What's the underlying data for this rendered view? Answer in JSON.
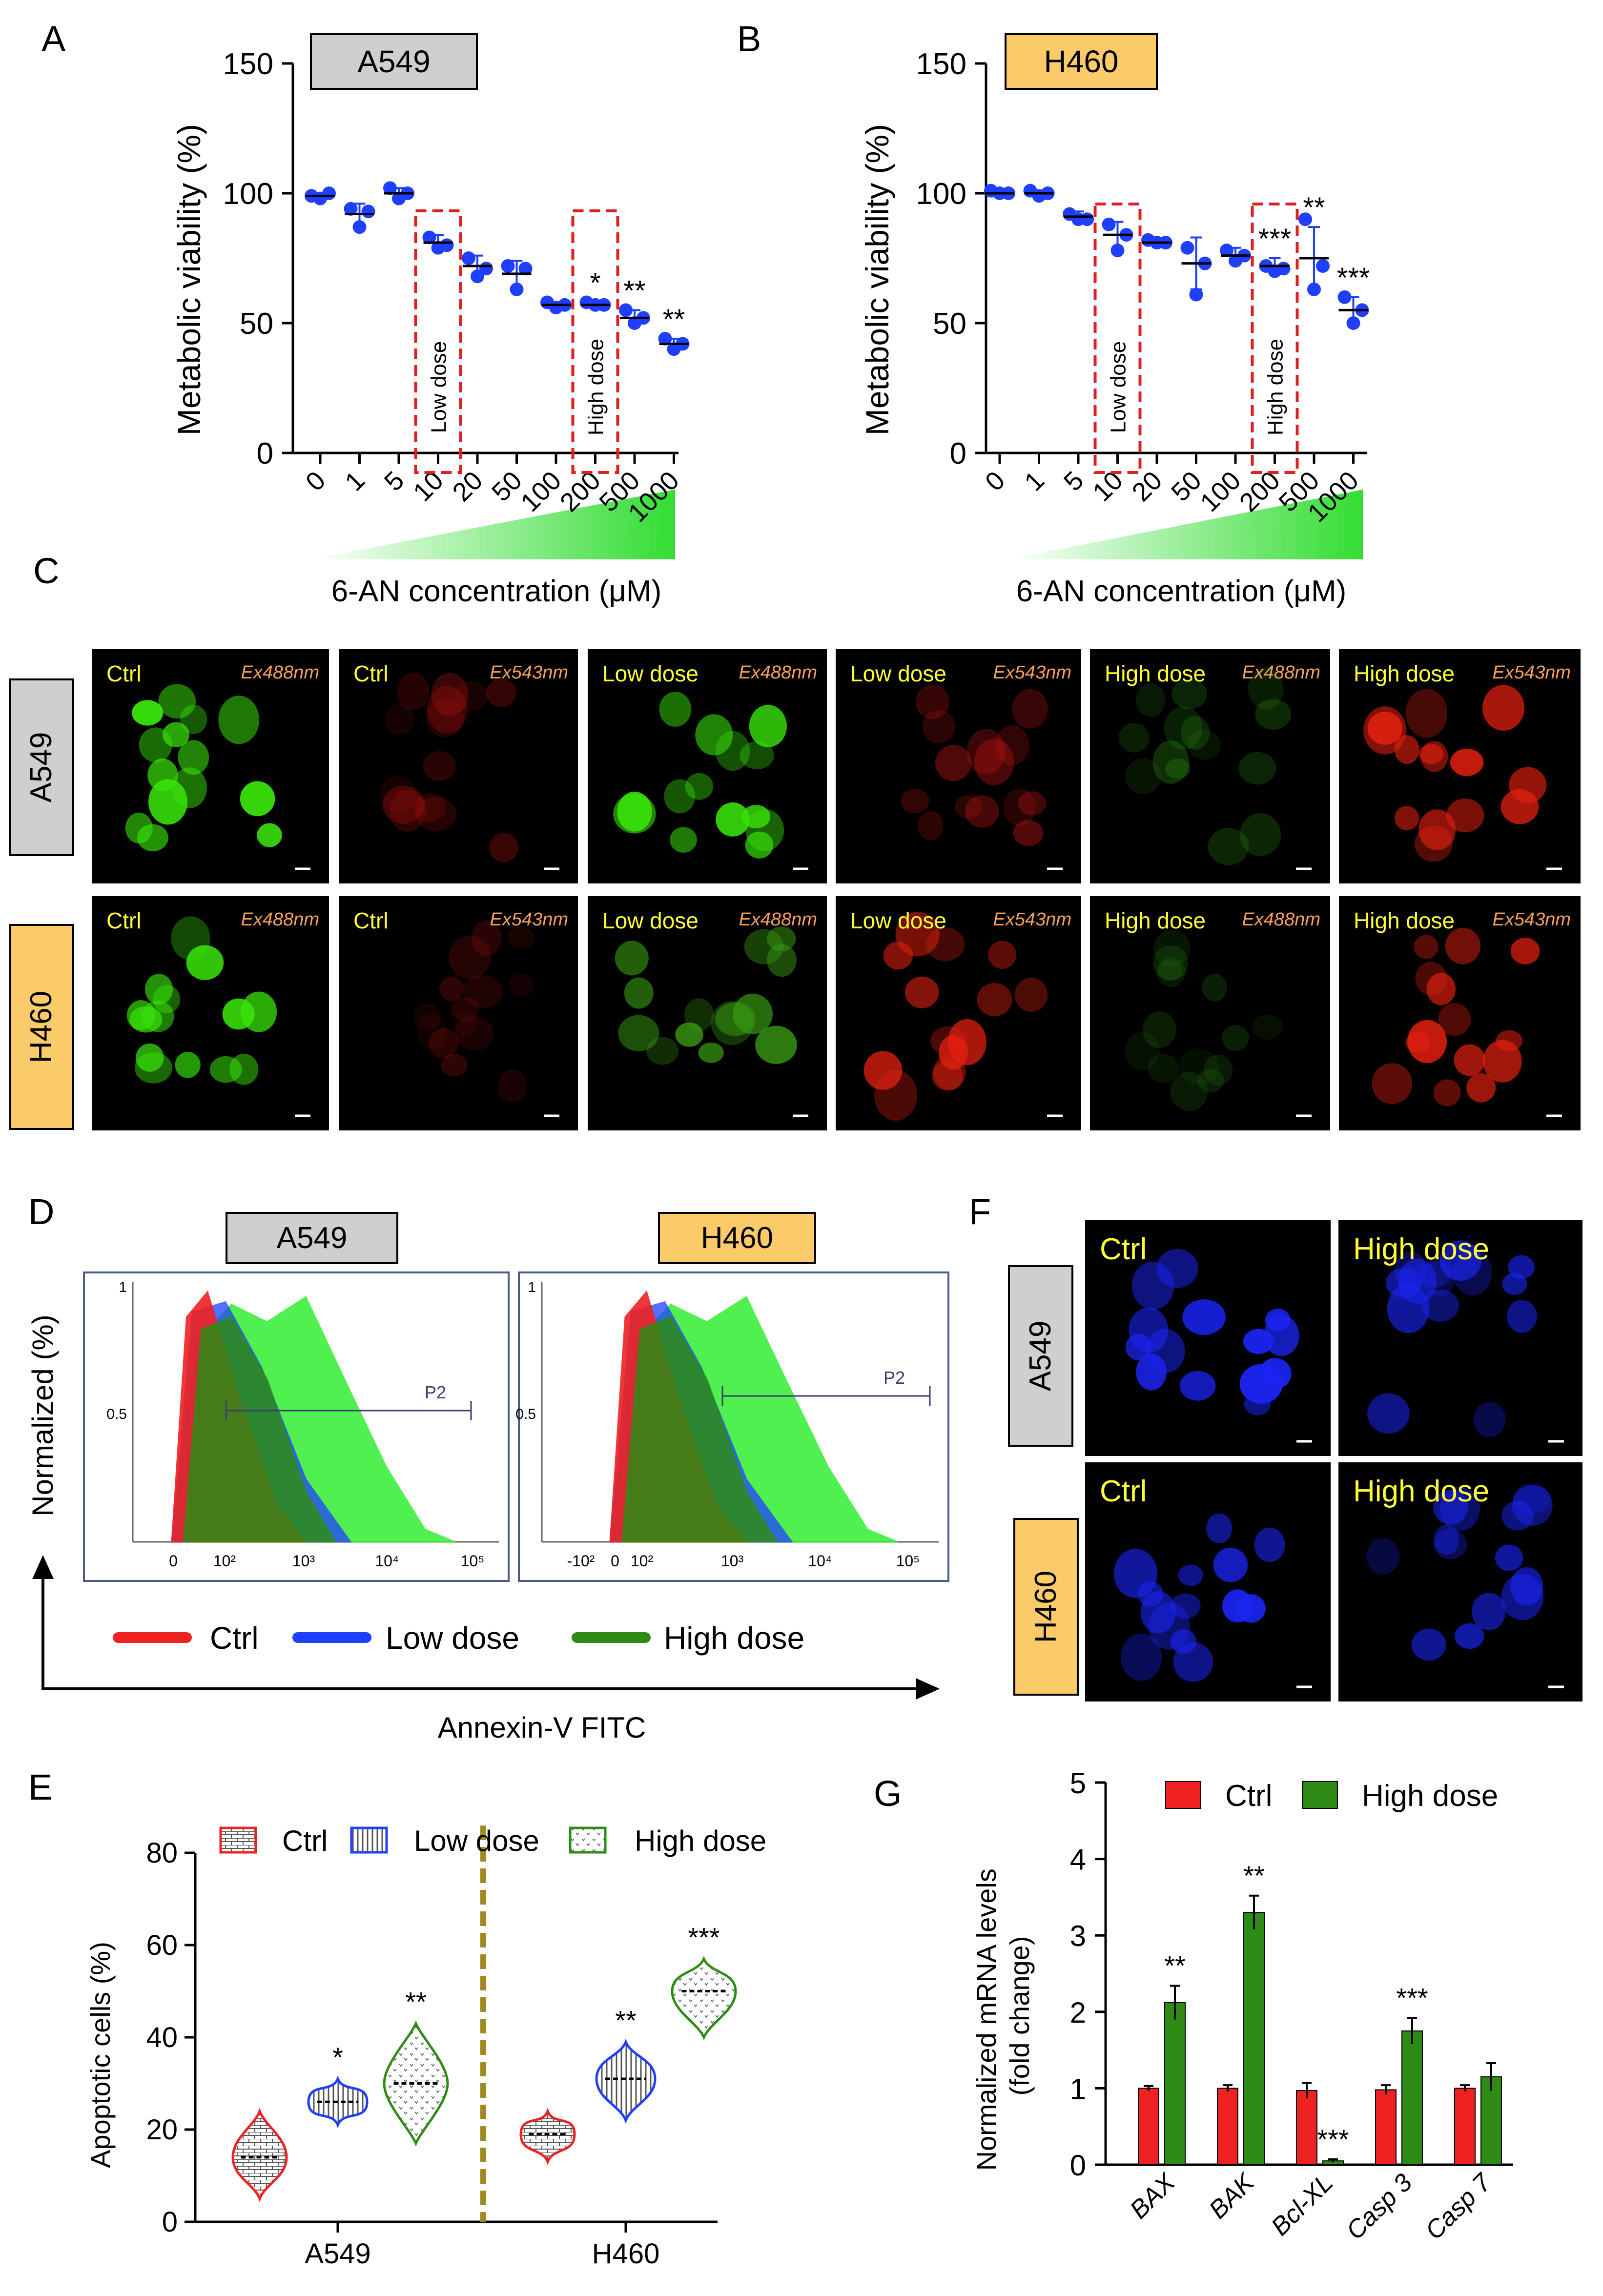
{
  "panel_letters": {
    "A": "A",
    "B": "B",
    "C": "C",
    "D": "D",
    "E": "E",
    "F": "F",
    "G": "G"
  },
  "colors": {
    "blue": "#1f3fff",
    "red": "#ee2222",
    "green": "#2e8b16",
    "lightgreen": "#33ee33",
    "gray_box": "#cfcfcf",
    "orange_box": "#fbcb6a",
    "dashed_red": "#e02020",
    "yellow_label": "#ffff33",
    "exc_label": "#f7a05a",
    "olive": "#a08a20"
  },
  "common": {
    "dose_categories": [
      "0",
      "1",
      "5",
      "10",
      "20",
      "50",
      "100",
      "200",
      "500",
      "1000"
    ],
    "x_title": "6-AN concentration (μM)",
    "y_title": "Metabolic viability (%)",
    "low_dose_label": "Low dose",
    "high_dose_label": "High dose"
  },
  "chart_data": [
    {
      "panel": "A",
      "type": "scatter",
      "title": "A549",
      "xlabel": "6-AN concentration (μM)",
      "ylabel": "Metabolic viability (%)",
      "ylim": [
        0,
        150
      ],
      "yticks": [
        0,
        50,
        100,
        150
      ],
      "categories": [
        "0",
        "1",
        "5",
        "10",
        "20",
        "50",
        "100",
        "200",
        "500",
        "1000"
      ],
      "means": [
        99,
        92,
        100,
        81,
        72,
        69,
        57,
        57,
        52,
        42
      ],
      "sd": [
        1,
        4,
        2,
        3,
        4,
        5,
        1,
        1,
        3,
        2
      ],
      "points": [
        [
          99,
          100,
          98
        ],
        [
          94,
          93,
          87
        ],
        [
          102,
          100,
          98
        ],
        [
          83,
          80,
          79
        ],
        [
          75,
          71,
          68
        ],
        [
          72,
          71,
          63
        ],
        [
          58,
          57,
          56
        ],
        [
          58,
          57,
          57
        ],
        [
          55,
          52,
          50
        ],
        [
          44,
          42,
          40
        ]
      ],
      "significance": [
        "",
        "",
        "",
        "",
        "",
        "",
        "",
        "*",
        "**",
        "**"
      ],
      "highlight_low": "10",
      "highlight_high": "200"
    },
    {
      "panel": "B",
      "type": "scatter",
      "title": "H460",
      "xlabel": "6-AN concentration (μM)",
      "ylabel": "Metabolic viability (%)",
      "ylim": [
        0,
        150
      ],
      "yticks": [
        0,
        50,
        100,
        150
      ],
      "categories": [
        "0",
        "1",
        "5",
        "10",
        "20",
        "50",
        "100",
        "200",
        "500",
        "1000"
      ],
      "means": [
        100,
        100,
        91,
        84,
        81,
        73,
        76,
        72,
        75,
        55
      ],
      "sd": [
        1,
        1,
        2,
        5,
        1,
        10,
        3,
        3,
        12,
        5
      ],
      "points": [
        [
          101,
          100,
          100
        ],
        [
          101,
          100,
          99
        ],
        [
          92,
          90,
          90
        ],
        [
          88,
          84,
          78
        ],
        [
          82,
          81,
          81
        ],
        [
          79,
          73,
          61
        ],
        [
          78,
          76,
          74
        ],
        [
          72,
          71,
          70
        ],
        [
          90,
          72,
          63
        ],
        [
          60,
          55,
          50
        ]
      ],
      "significance": [
        "",
        "",
        "",
        "",
        "",
        "",
        "",
        "***",
        "**",
        "***"
      ],
      "highlight_low": "10",
      "highlight_high": "200"
    },
    {
      "panel": "D",
      "type": "area",
      "title": "Flow cytometry",
      "xlabel": "Annexin-V FITC",
      "ylabel": "Normalized (%)",
      "gate": "P2",
      "plots": [
        {
          "title": "A549",
          "xticks": [
            "0",
            "10²",
            "10³",
            "10⁴",
            "10⁵"
          ],
          "yticks": [
            "1",
            "0.5"
          ]
        },
        {
          "title": "H460",
          "xticks": [
            "-10²",
            "0",
            "10²",
            "10³",
            "10⁴",
            "10⁵"
          ],
          "yticks": [
            "1",
            "0.5"
          ]
        }
      ],
      "legend": [
        "Ctrl",
        "Low dose",
        "High dose"
      ]
    },
    {
      "panel": "E",
      "type": "violin",
      "ylabel": "Apoptotic cells (%)",
      "ylim": [
        0,
        80
      ],
      "yticks": [
        0,
        20,
        40,
        60,
        80
      ],
      "groups": [
        "A549",
        "H460"
      ],
      "legend": [
        "Ctrl",
        "Low dose",
        "High dose"
      ],
      "series": [
        {
          "name": "Ctrl",
          "A549": {
            "median": 14,
            "min": 5,
            "max": 24
          },
          "H460": {
            "median": 19,
            "min": 13,
            "max": 24
          }
        },
        {
          "name": "Low dose",
          "A549": {
            "median": 26,
            "min": 21,
            "max": 31
          },
          "H460": {
            "median": 31,
            "min": 22,
            "max": 39
          }
        },
        {
          "name": "High dose",
          "A549": {
            "median": 30,
            "min": 17,
            "max": 43
          },
          "H460": {
            "median": 50,
            "min": 40,
            "max": 57
          }
        }
      ],
      "significance": {
        "A549": [
          "",
          "*",
          "**"
        ],
        "H460": [
          "",
          "**",
          "***"
        ]
      }
    },
    {
      "panel": "G",
      "type": "bar",
      "ylabel": "Normalized mRNA levels (fold change)",
      "ylim": [
        0,
        5
      ],
      "yticks": [
        0,
        1,
        2,
        3,
        4,
        5
      ],
      "categories": [
        "BAX",
        "BAK",
        "Bcl-XL",
        "Casp 3",
        "Casp 7"
      ],
      "series": [
        {
          "name": "Ctrl",
          "values": [
            1.0,
            1.0,
            0.97,
            0.98,
            1.0
          ],
          "err": [
            0.03,
            0.04,
            0.1,
            0.06,
            0.04
          ]
        },
        {
          "name": "High dose",
          "values": [
            2.12,
            3.3,
            0.05,
            1.75,
            1.15
          ],
          "err": [
            0.22,
            0.22,
            0.02,
            0.17,
            0.18
          ]
        }
      ],
      "significance": [
        "**",
        "**",
        "***",
        "***",
        ""
      ]
    }
  ],
  "micrographs_C": {
    "row_labels": [
      "A549",
      "H460"
    ],
    "tiles": [
      [
        {
          "label": "Ctrl",
          "channel": "Ex488nm",
          "color": "#39e40a",
          "intensity": 0.95
        },
        {
          "label": "Ctrl",
          "channel": "Ex543nm",
          "color": "#b01010",
          "intensity": 0.35
        },
        {
          "label": "Low dose",
          "channel": "Ex488nm",
          "color": "#39e40a",
          "intensity": 0.9
        },
        {
          "label": "Low dose",
          "channel": "Ex543nm",
          "color": "#c01515",
          "intensity": 0.45
        },
        {
          "label": "High dose",
          "channel": "Ex488nm",
          "color": "#2d8c12",
          "intensity": 0.35
        },
        {
          "label": "High dose",
          "channel": "Ex543nm",
          "color": "#e52010",
          "intensity": 0.85
        }
      ],
      [
        {
          "label": "Ctrl",
          "channel": "Ex488nm",
          "color": "#39e40a",
          "intensity": 0.9
        },
        {
          "label": "Ctrl",
          "channel": "Ex543nm",
          "color": "#9a1010",
          "intensity": 0.3
        },
        {
          "label": "Low dose",
          "channel": "Ex488nm",
          "color": "#3a9a12",
          "intensity": 0.8
        },
        {
          "label": "Low dose",
          "channel": "Ex543nm",
          "color": "#e52010",
          "intensity": 0.8
        },
        {
          "label": "High dose",
          "channel": "Ex488nm",
          "color": "#226a10",
          "intensity": 0.3
        },
        {
          "label": "High dose",
          "channel": "Ex543nm",
          "color": "#e52010",
          "intensity": 0.85
        }
      ]
    ]
  },
  "micrographs_F": {
    "row_labels": [
      "A549",
      "H460"
    ],
    "tiles": [
      [
        {
          "label": "Ctrl"
        },
        {
          "label": "High dose"
        }
      ],
      [
        {
          "label": "Ctrl"
        },
        {
          "label": "High dose"
        }
      ]
    ]
  }
}
